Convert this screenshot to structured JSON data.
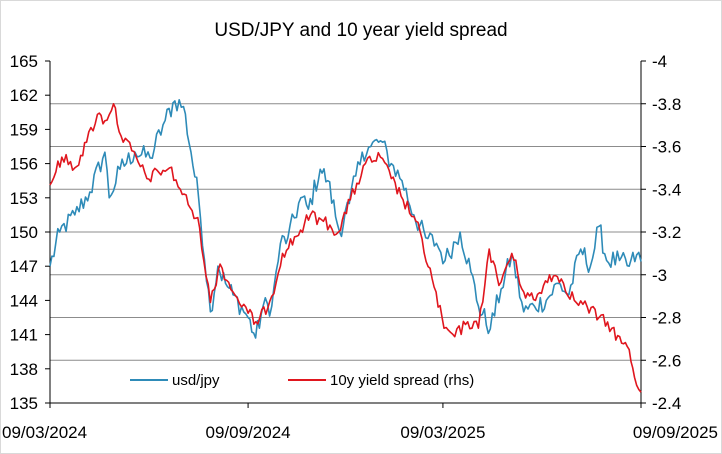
{
  "chart_data": {
    "type": "line",
    "title": "USD/JPY and 10 year yield spread",
    "xlabel": "",
    "ylabel": "",
    "y2label": "",
    "x_ticks": [
      "09/03/2024",
      "09/09/2024",
      "09/03/2025",
      "09/09/2025"
    ],
    "x_tick_positions": [
      "2024-03-09",
      "2024-09-09",
      "2025-03-09",
      "2025-09-09"
    ],
    "xlim": [
      "2024-03-09",
      "2025-09-09"
    ],
    "ylim": [
      135,
      165
    ],
    "y_ticks": [
      135,
      138,
      141,
      144,
      147,
      150,
      153,
      156,
      159,
      162,
      165
    ],
    "y2lim": [
      -4.0,
      -2.4
    ],
    "y2_ticks": [
      -4.0,
      -3.8,
      -3.6,
      -3.4,
      -3.2,
      -3.0,
      -2.8,
      -2.6,
      -2.4
    ],
    "y2_tick_labels": [
      "-4",
      "-3.8",
      "-3.6",
      "-3.4",
      "-3.2",
      "-3",
      "-2.8",
      "-2.6",
      "-2.4"
    ],
    "y2_inverted": true,
    "grid": "horizontal (right axis)",
    "legend_position": "bottom-left inside",
    "series": [
      {
        "name": "usd/jpy",
        "axis": "left",
        "color": "#2e8bb8",
        "points": [
          [
            "2024-03-09",
            147.0
          ],
          [
            "2024-03-18",
            150.0
          ],
          [
            "2024-04-01",
            151.5
          ],
          [
            "2024-04-15",
            153.5
          ],
          [
            "2024-04-29",
            157.0
          ],
          [
            "2024-05-03",
            153.0
          ],
          [
            "2024-05-13",
            155.5
          ],
          [
            "2024-05-27",
            157.0
          ],
          [
            "2024-06-10",
            156.5
          ],
          [
            "2024-06-24",
            159.8
          ],
          [
            "2024-07-03",
            161.5
          ],
          [
            "2024-07-11",
            161.0
          ],
          [
            "2024-07-18",
            157.0
          ],
          [
            "2024-07-25",
            153.0
          ],
          [
            "2024-08-05",
            143.0
          ],
          [
            "2024-08-12",
            147.0
          ],
          [
            "2024-08-19",
            145.5
          ],
          [
            "2024-08-26",
            144.5
          ],
          [
            "2024-09-09",
            142.5
          ],
          [
            "2024-09-16",
            140.7
          ],
          [
            "2024-09-23",
            143.5
          ],
          [
            "2024-10-01",
            143.5
          ],
          [
            "2024-10-09",
            149.0
          ],
          [
            "2024-10-16",
            149.5
          ],
          [
            "2024-10-28",
            153.0
          ],
          [
            "2024-11-04",
            152.0
          ],
          [
            "2024-11-15",
            155.5
          ],
          [
            "2024-11-22",
            154.5
          ],
          [
            "2024-12-03",
            150.0
          ],
          [
            "2024-12-12",
            152.5
          ],
          [
            "2024-12-24",
            157.0
          ],
          [
            "2025-01-01",
            157.5
          ],
          [
            "2025-01-10",
            158.0
          ],
          [
            "2025-01-20",
            156.0
          ],
          [
            "2025-01-30",
            154.5
          ],
          [
            "2025-02-10",
            151.5
          ],
          [
            "2025-02-21",
            149.5
          ],
          [
            "2025-03-03",
            149.0
          ],
          [
            "2025-03-11",
            147.5
          ],
          [
            "2025-03-25",
            150.0
          ],
          [
            "2025-04-04",
            146.5
          ],
          [
            "2025-04-11",
            143.5
          ],
          [
            "2025-04-22",
            141.5
          ],
          [
            "2025-05-02",
            145.0
          ],
          [
            "2025-05-12",
            148.0
          ],
          [
            "2025-05-23",
            143.0
          ],
          [
            "2025-06-02",
            143.5
          ],
          [
            "2025-06-13",
            144.0
          ],
          [
            "2025-06-24",
            145.5
          ],
          [
            "2025-07-04",
            144.5
          ],
          [
            "2025-07-15",
            148.5
          ],
          [
            "2025-07-24",
            147.0
          ],
          [
            "2025-08-01",
            150.5
          ],
          [
            "2025-08-08",
            147.5
          ],
          [
            "2025-08-20",
            147.5
          ],
          [
            "2025-08-29",
            147.0
          ],
          [
            "2025-09-05",
            148.0
          ],
          [
            "2025-09-09",
            147.4
          ]
        ]
      },
      {
        "name": "10y yield spread (rhs)",
        "axis": "right",
        "color": "#e0161e",
        "points": [
          [
            "2024-03-09",
            -3.42
          ],
          [
            "2024-03-20",
            -3.55
          ],
          [
            "2024-04-01",
            -3.5
          ],
          [
            "2024-04-12",
            -3.62
          ],
          [
            "2024-04-22",
            -3.75
          ],
          [
            "2024-04-29",
            -3.72
          ],
          [
            "2024-05-07",
            -3.8
          ],
          [
            "2024-05-14",
            -3.65
          ],
          [
            "2024-05-24",
            -3.58
          ],
          [
            "2024-06-07",
            -3.45
          ],
          [
            "2024-06-18",
            -3.48
          ],
          [
            "2024-06-28",
            -3.5
          ],
          [
            "2024-07-08",
            -3.4
          ],
          [
            "2024-07-19",
            -3.3
          ],
          [
            "2024-07-26",
            -3.22
          ],
          [
            "2024-08-05",
            -2.87
          ],
          [
            "2024-08-14",
            -3.05
          ],
          [
            "2024-08-26",
            -2.92
          ],
          [
            "2024-09-09",
            -2.82
          ],
          [
            "2024-09-18",
            -2.77
          ],
          [
            "2024-10-01",
            -2.9
          ],
          [
            "2024-10-11",
            -3.1
          ],
          [
            "2024-10-24",
            -3.18
          ],
          [
            "2024-11-06",
            -3.28
          ],
          [
            "2024-11-18",
            -3.25
          ],
          [
            "2024-12-02",
            -3.2
          ],
          [
            "2024-12-13",
            -3.35
          ],
          [
            "2024-12-27",
            -3.52
          ],
          [
            "2025-01-10",
            -3.55
          ],
          [
            "2025-01-20",
            -3.45
          ],
          [
            "2025-01-31",
            -3.35
          ],
          [
            "2025-02-12",
            -3.25
          ],
          [
            "2025-02-27",
            -2.98
          ],
          [
            "2025-03-10",
            -2.75
          ],
          [
            "2025-03-20",
            -2.71
          ],
          [
            "2025-04-01",
            -2.78
          ],
          [
            "2025-04-11",
            -2.75
          ],
          [
            "2025-04-21",
            -3.12
          ],
          [
            "2025-04-30",
            -2.95
          ],
          [
            "2025-05-12",
            -3.1
          ],
          [
            "2025-05-23",
            -2.92
          ],
          [
            "2025-06-03",
            -2.88
          ],
          [
            "2025-06-16",
            -3.0
          ],
          [
            "2025-06-27",
            -2.98
          ],
          [
            "2025-07-09",
            -2.88
          ],
          [
            "2025-07-21",
            -2.85
          ],
          [
            "2025-08-01",
            -2.8
          ],
          [
            "2025-08-13",
            -2.75
          ],
          [
            "2025-08-22",
            -2.68
          ],
          [
            "2025-08-29",
            -2.65
          ],
          [
            "2025-09-03",
            -2.52
          ],
          [
            "2025-09-09",
            -2.45
          ]
        ]
      }
    ]
  }
}
